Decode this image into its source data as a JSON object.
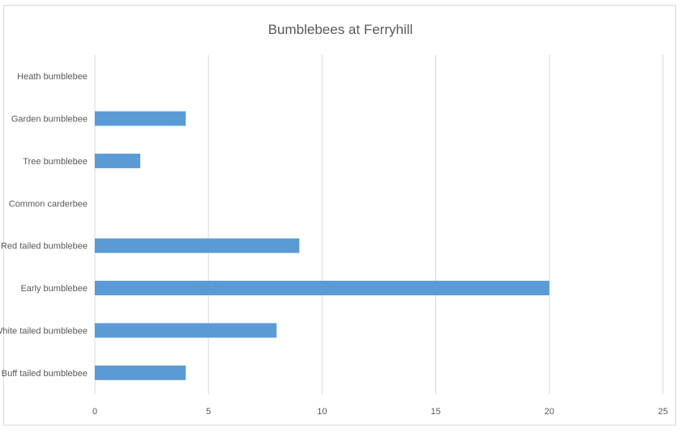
{
  "chart_data": {
    "type": "bar",
    "orientation": "horizontal",
    "title": "Bumblebees at Ferryhill",
    "xlabel": "",
    "ylabel": "",
    "categories": [
      "Heath bumblebee",
      "Garden bumblebee",
      "Tree bumblebee",
      "Common carderbee",
      "Red tailed bumblebee",
      "Early bumblebee",
      "White tailed bumblebee",
      "Buff tailed bumblebee"
    ],
    "values": [
      0,
      4,
      2,
      0,
      9,
      20,
      8,
      4
    ],
    "xlim": [
      0,
      25
    ],
    "xticks": [
      0,
      5,
      10,
      15,
      20,
      25
    ],
    "grid": "vertical",
    "bar_color": "#5b9bd5",
    "legend": "none"
  }
}
